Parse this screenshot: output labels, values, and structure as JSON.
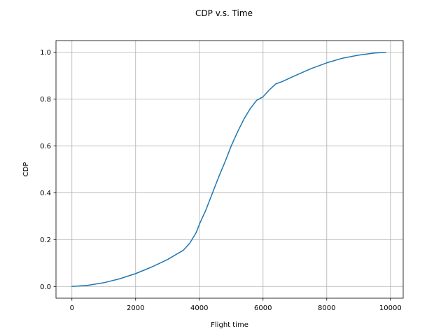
{
  "chart_data": {
    "type": "line",
    "title": "CDP v.s. Time",
    "xlabel": "Flight time",
    "ylabel": "CDP",
    "xlim": [
      -500,
      10400
    ],
    "ylim": [
      -0.05,
      1.05
    ],
    "x_ticks": [
      0,
      2000,
      4000,
      6000,
      8000,
      10000
    ],
    "x_tick_labels": [
      "0",
      "2000",
      "4000",
      "6000",
      "8000",
      "10000"
    ],
    "y_ticks": [
      0.0,
      0.2,
      0.4,
      0.6,
      0.8,
      1.0
    ],
    "y_tick_labels": [
      "0.0",
      "0.2",
      "0.4",
      "0.6",
      "0.8",
      "1.0"
    ],
    "grid": true,
    "line_color": "#1f77b4",
    "series": [
      {
        "x": [
          0,
          500,
          1000,
          1500,
          2000,
          2500,
          3000,
          3500,
          3700,
          3900,
          4000,
          4200,
          4400,
          4600,
          4800,
          5000,
          5200,
          5400,
          5600,
          5800,
          6000,
          6200,
          6400,
          6600,
          7000,
          7500,
          8000,
          8500,
          9000,
          9500,
          9850
        ],
        "y": [
          0.0,
          0.005,
          0.016,
          0.033,
          0.055,
          0.083,
          0.115,
          0.155,
          0.185,
          0.23,
          0.265,
          0.325,
          0.395,
          0.465,
          0.53,
          0.6,
          0.66,
          0.715,
          0.76,
          0.795,
          0.81,
          0.84,
          0.865,
          0.875,
          0.9,
          0.93,
          0.955,
          0.975,
          0.988,
          0.997,
          1.0
        ]
      }
    ]
  }
}
